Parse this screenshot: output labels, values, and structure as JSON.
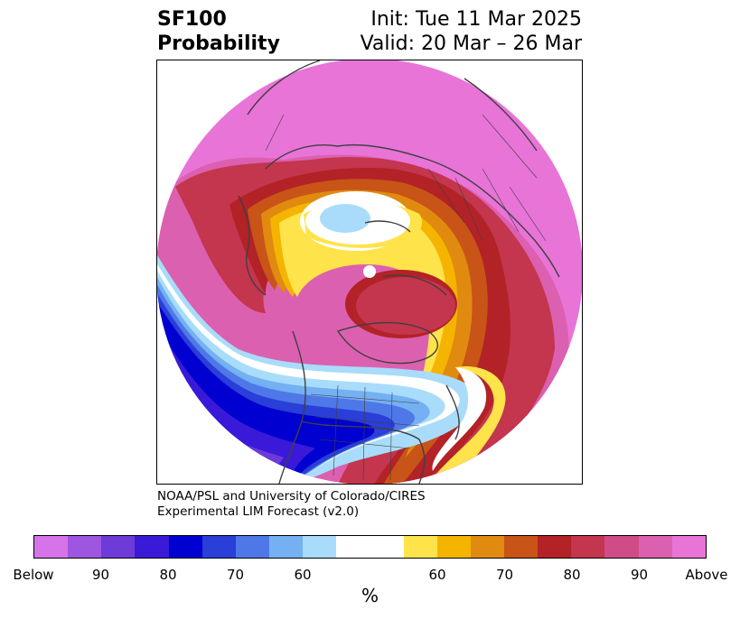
{
  "title": {
    "left_line1": "SF100",
    "left_line2": "Probability",
    "right_line1": "Init: Tue 11 Mar 2025",
    "right_line2": "Valid: 20 Mar – 26 Mar"
  },
  "credit": {
    "line1": "NOAA/PSL and University of Colorado/CIRES",
    "line2": "Experimental LIM Forecast (v2.0)"
  },
  "colorbar": {
    "colors": [
      "#d673e8",
      "#9e55e0",
      "#6e3ad8",
      "#3a1ad8",
      "#0000d0",
      "#2a3ed8",
      "#4e78e8",
      "#74b0f2",
      "#a8dcfa",
      "#ffffff",
      "#ffe34a",
      "#f4b400",
      "#e08a10",
      "#c85418",
      "#b22226",
      "#c4354e",
      "#d04c88",
      "#dc60b0",
      "#e874d8"
    ],
    "tick_labels": [
      "Below",
      "90",
      "80",
      "70",
      "60",
      "60",
      "70",
      "80",
      "90",
      "Above"
    ],
    "unit": "%"
  },
  "map": {
    "projection": "north-polar-stereographic",
    "colors": {
      "above_extreme": "#e874d8",
      "above_90": "#d04c88",
      "above_80": "#b22226",
      "above_70": "#c85418",
      "above_60": "#f4b400",
      "near_normal": "#ffffff",
      "below_60": "#a8dcfa",
      "below_70": "#4e78e8",
      "below_80": "#0000d0",
      "below_90": "#6e3ad8",
      "below_extreme": "#d673e8",
      "coastline": "#404040"
    }
  }
}
